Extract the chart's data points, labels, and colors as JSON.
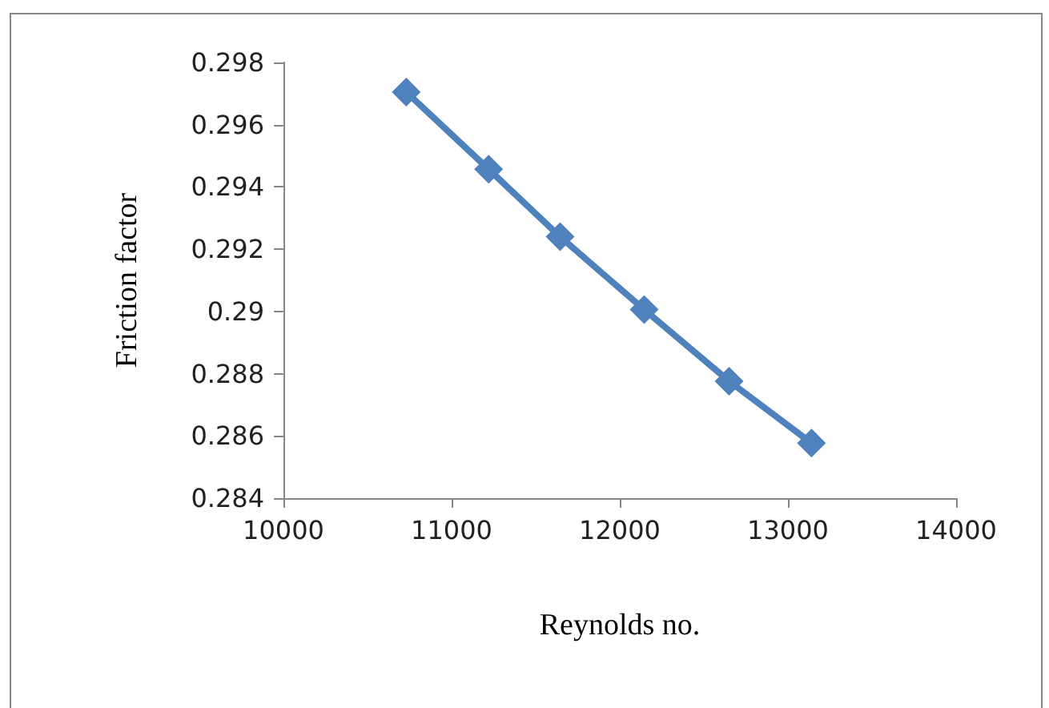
{
  "chart_data": {
    "type": "line",
    "xlabel": "Reynolds no.",
    "ylabel": "Friction factor",
    "x": [
      10730,
      11220,
      11645,
      12145,
      12650,
      13140
    ],
    "series": [
      {
        "color": "#4f81bd",
        "values": [
          0.29705,
          0.29457,
          0.2924,
          0.29006,
          0.28776,
          0.28577
        ]
      }
    ],
    "xlim": [
      10000,
      14000
    ],
    "xticks": [
      10000,
      11000,
      12000,
      13000,
      14000
    ],
    "ylim": [
      0.284,
      0.298
    ],
    "yticks": [
      0.284,
      0.286,
      0.288,
      {
        "value": 0.29,
        "label": "0.29"
      },
      0.292,
      0.294,
      0.296,
      0.298
    ],
    "grid": false,
    "marker": "diamond",
    "line_style": "solid"
  }
}
